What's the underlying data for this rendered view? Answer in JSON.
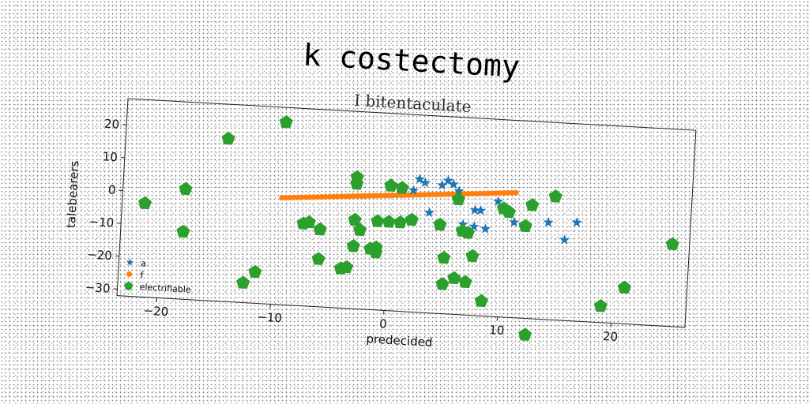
{
  "chart_data": {
    "type": "scatter",
    "title": "k costectomy",
    "subtitle": "I bitentaculate",
    "xlabel": "predecided",
    "ylabel": "talebearers",
    "xlim": [
      -23.5,
      26.5
    ],
    "ylim": [
      -32,
      28
    ],
    "xticks": [
      -20,
      -10,
      0,
      10,
      20
    ],
    "yticks": [
      -30,
      -20,
      -10,
      0,
      10,
      20
    ],
    "legend_position": "lower-left",
    "grid": false,
    "series": [
      {
        "name": "a",
        "marker": "star",
        "color": "#1f77b4",
        "points": [
          [
            2.5,
            8.5
          ],
          [
            3.0,
            7.5
          ],
          [
            4.5,
            7.0
          ],
          [
            5.0,
            8.5
          ],
          [
            5.5,
            7.5
          ],
          [
            6.0,
            5.5
          ],
          [
            2.0,
            5.0
          ],
          [
            3.5,
            -1.5
          ],
          [
            7.5,
            0.0
          ],
          [
            8.0,
            0.0
          ],
          [
            9.5,
            3.0
          ],
          [
            6.5,
            -4.5
          ],
          [
            7.5,
            -5.0
          ],
          [
            8.5,
            -5.5
          ],
          [
            11.0,
            -3.0
          ],
          [
            14.0,
            -2.5
          ],
          [
            15.5,
            -7.5
          ],
          [
            16.5,
            -2.0
          ]
        ]
      },
      {
        "name": "f",
        "marker": "circle",
        "color": "#ff7f0e",
        "line": {
          "from": [
            -9.5,
            0.5
          ],
          "to": [
            11.0,
            6.0
          ]
        }
      },
      {
        "name": "electrifiable",
        "marker": "pentagon",
        "color": "#2ca02c",
        "points": [
          [
            -21.5,
            -3.5
          ],
          [
            -18,
            1.5
          ],
          [
            -18,
            -11.5
          ],
          [
            -14.5,
            17.5
          ],
          [
            -9.5,
            23.5
          ],
          [
            -12.5,
            -26
          ],
          [
            -11.5,
            -22.5
          ],
          [
            -7.5,
            -7
          ],
          [
            -7,
            -6.5
          ],
          [
            -6,
            -8.5
          ],
          [
            -6,
            -17.5
          ],
          [
            -4,
            -20
          ],
          [
            -3.5,
            -19.5
          ],
          [
            -3,
            6
          ],
          [
            -3,
            8
          ],
          [
            -3,
            -5
          ],
          [
            -2.5,
            -8
          ],
          [
            -3,
            -13
          ],
          [
            -1.5,
            -13.5
          ],
          [
            -1,
            -13
          ],
          [
            -1,
            -14.5
          ],
          [
            -1,
            -5
          ],
          [
            0,
            6
          ],
          [
            0,
            -5
          ],
          [
            1,
            5.5
          ],
          [
            1,
            -5
          ],
          [
            2,
            -4
          ],
          [
            4.5,
            -5
          ],
          [
            5,
            -15
          ],
          [
            5,
            -23
          ],
          [
            6,
            -21
          ],
          [
            7,
            -22
          ],
          [
            6,
            3
          ],
          [
            6.5,
            -6.5
          ],
          [
            7,
            -7
          ],
          [
            7.5,
            -14
          ],
          [
            8.5,
            -27.5
          ],
          [
            10,
            1
          ],
          [
            10.5,
            0
          ],
          [
            12,
            -4
          ],
          [
            12.5,
            2.5
          ],
          [
            14.5,
            5.5
          ],
          [
            12.5,
            -37
          ],
          [
            19,
            -27
          ],
          [
            21,
            -21
          ],
          [
            25,
            -7
          ]
        ]
      }
    ]
  }
}
